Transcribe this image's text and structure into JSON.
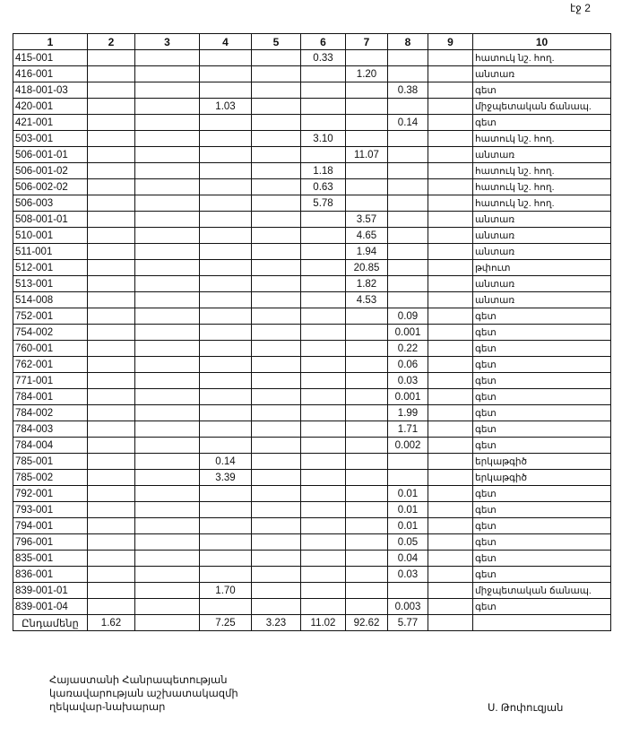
{
  "page_number": "էջ 2",
  "table": {
    "headers": [
      "1",
      "2",
      "3",
      "4",
      "5",
      "6",
      "7",
      "8",
      "9",
      "10"
    ],
    "rows": [
      [
        "415-001",
        "",
        "",
        "",
        "",
        "0.33",
        "",
        "",
        "",
        "հատուկ նշ. հող."
      ],
      [
        "416-001",
        "",
        "",
        "",
        "",
        "",
        "1.20",
        "",
        "",
        "անտառ"
      ],
      [
        "418-001-03",
        "",
        "",
        "",
        "",
        "",
        "",
        "0.38",
        "",
        "գետ"
      ],
      [
        "420-001",
        "",
        "",
        "1.03",
        "",
        "",
        "",
        "",
        "",
        "միջպետական ճանապ."
      ],
      [
        "421-001",
        "",
        "",
        "",
        "",
        "",
        "",
        "0.14",
        "",
        "գետ"
      ],
      [
        "503-001",
        "",
        "",
        "",
        "",
        "3.10",
        "",
        "",
        "",
        "հատուկ նշ. հող."
      ],
      [
        "506-001-01",
        "",
        "",
        "",
        "",
        "",
        "11.07",
        "",
        "",
        "անտառ"
      ],
      [
        "506-001-02",
        "",
        "",
        "",
        "",
        "1.18",
        "",
        "",
        "",
        "հատուկ նշ. հող."
      ],
      [
        "506-002-02",
        "",
        "",
        "",
        "",
        "0.63",
        "",
        "",
        "",
        "հատուկ նշ. հող."
      ],
      [
        "506-003",
        "",
        "",
        "",
        "",
        "5.78",
        "",
        "",
        "",
        "հատուկ նշ. հող."
      ],
      [
        "508-001-01",
        "",
        "",
        "",
        "",
        "",
        "3.57",
        "",
        "",
        "անտառ"
      ],
      [
        "510-001",
        "",
        "",
        "",
        "",
        "",
        "4.65",
        "",
        "",
        "անտառ"
      ],
      [
        "511-001",
        "",
        "",
        "",
        "",
        "",
        "1.94",
        "",
        "",
        "անտառ"
      ],
      [
        "512-001",
        "",
        "",
        "",
        "",
        "",
        "20.85",
        "",
        "",
        "թփուտ"
      ],
      [
        "513-001",
        "",
        "",
        "",
        "",
        "",
        "1.82",
        "",
        "",
        "անտառ"
      ],
      [
        "514-008",
        "",
        "",
        "",
        "",
        "",
        "4.53",
        "",
        "",
        "անտառ"
      ],
      [
        "752-001",
        "",
        "",
        "",
        "",
        "",
        "",
        "0.09",
        "",
        "գետ"
      ],
      [
        "754-002",
        "",
        "",
        "",
        "",
        "",
        "",
        "0.001",
        "",
        "գետ"
      ],
      [
        "760-001",
        "",
        "",
        "",
        "",
        "",
        "",
        "0.22",
        "",
        "գետ"
      ],
      [
        "762-001",
        "",
        "",
        "",
        "",
        "",
        "",
        "0.06",
        "",
        "գետ"
      ],
      [
        "771-001",
        "",
        "",
        "",
        "",
        "",
        "",
        "0.03",
        "",
        "գետ"
      ],
      [
        "784-001",
        "",
        "",
        "",
        "",
        "",
        "",
        "0.001",
        "",
        "գետ"
      ],
      [
        "784-002",
        "",
        "",
        "",
        "",
        "",
        "",
        "1.99",
        "",
        "գետ"
      ],
      [
        "784-003",
        "",
        "",
        "",
        "",
        "",
        "",
        "1.71",
        "",
        "գետ"
      ],
      [
        "784-004",
        "",
        "",
        "",
        "",
        "",
        "",
        "0.002",
        "",
        "գետ"
      ],
      [
        "785-001",
        "",
        "",
        "0.14",
        "",
        "",
        "",
        "",
        "",
        "երկաթգիծ"
      ],
      [
        "785-002",
        "",
        "",
        "3.39",
        "",
        "",
        "",
        "",
        "",
        "երկաթգիծ"
      ],
      [
        "792-001",
        "",
        "",
        "",
        "",
        "",
        "",
        "0.01",
        "",
        "գետ"
      ],
      [
        "793-001",
        "",
        "",
        "",
        "",
        "",
        "",
        "0.01",
        "",
        "գետ"
      ],
      [
        "794-001",
        "",
        "",
        "",
        "",
        "",
        "",
        "0.01",
        "",
        "գետ"
      ],
      [
        "796-001",
        "",
        "",
        "",
        "",
        "",
        "",
        "0.05",
        "",
        "գետ"
      ],
      [
        "835-001",
        "",
        "",
        "",
        "",
        "",
        "",
        "0.04",
        "",
        "գետ"
      ],
      [
        "836-001",
        "",
        "",
        "",
        "",
        "",
        "",
        "0.03",
        "",
        "գետ"
      ],
      [
        "839-001-01",
        "",
        "",
        "1.70",
        "",
        "",
        "",
        "",
        "",
        "միջպետական ճանապ."
      ],
      [
        "839-001-04",
        "",
        "",
        "",
        "",
        "",
        "",
        "0.003",
        "",
        "գետ"
      ]
    ],
    "total": [
      "Ընդամենը",
      "1.62",
      "",
      "7.25",
      "3.23",
      "11.02",
      "92.62",
      "5.77",
      "",
      ""
    ]
  },
  "footer": {
    "signer_title_lines": [
      "Հայաստանի Հանրապետության",
      "կառավարության աշխատակազմի",
      "ղեկավար-նախարար"
    ],
    "signer_name": "Ս. Թոփուզյան"
  }
}
